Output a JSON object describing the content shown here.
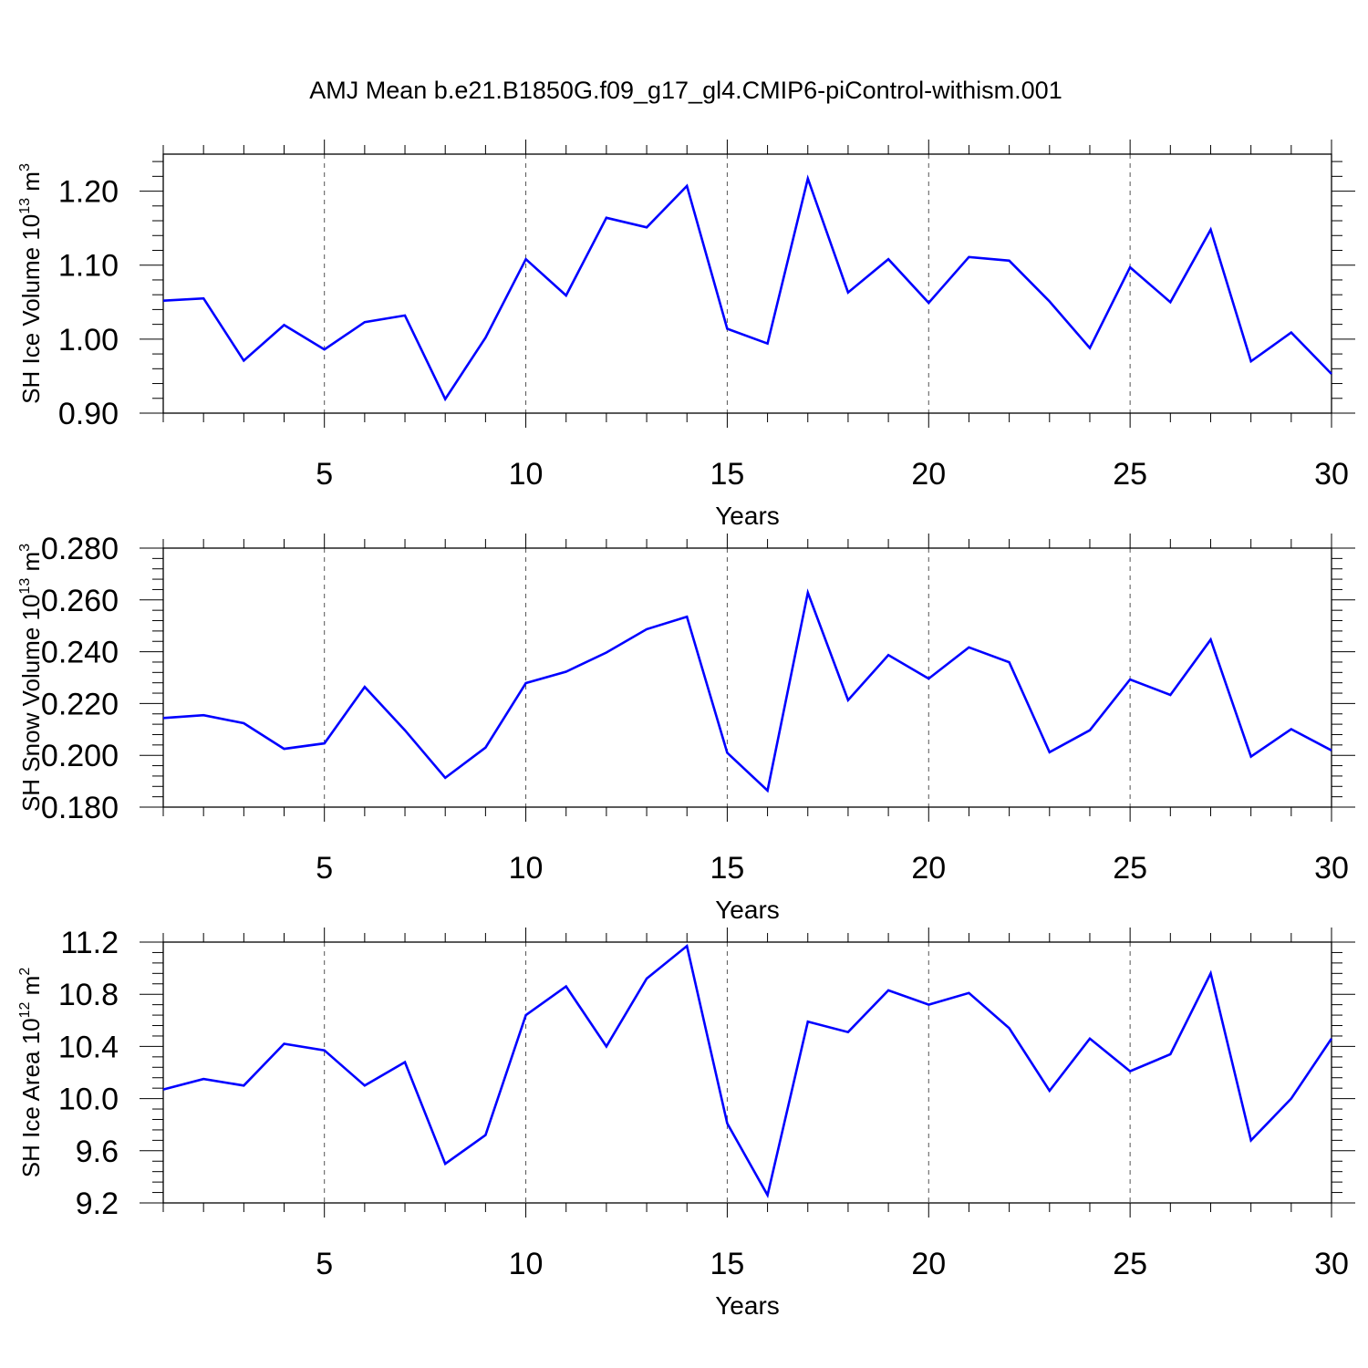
{
  "title": "AMJ Mean b.e21.B1850G.f09_g17_gl4.CMIP6-piControl-withism.001",
  "colors": {
    "line": "#0000ff",
    "axis": "#000000",
    "grid": "#555555"
  },
  "chart_data": [
    {
      "type": "line",
      "ylabel": {
        "text": "SH Ice Volume 10",
        "sup": "13",
        "unit": " m",
        "unit_sup": "3"
      },
      "xlabel": "Years",
      "xlim": [
        1,
        30
      ],
      "ylim": [
        0.9,
        1.25
      ],
      "xticks": [
        5,
        10,
        15,
        20,
        25,
        30
      ],
      "yticks": [
        "0.90",
        "1.00",
        "1.10",
        "1.20"
      ],
      "grid": "x-dashed",
      "x": [
        1,
        2,
        3,
        4,
        5,
        6,
        7,
        8,
        9,
        10,
        11,
        12,
        13,
        14,
        15,
        16,
        17,
        18,
        19,
        20,
        21,
        22,
        23,
        24,
        25,
        26,
        27,
        28,
        29,
        30
      ],
      "values": [
        1.052,
        1.055,
        0.971,
        1.019,
        0.986,
        1.023,
        1.032,
        0.919,
        1.002,
        1.108,
        1.059,
        1.164,
        1.151,
        1.207,
        1.014,
        0.994,
        1.217,
        1.063,
        1.108,
        1.049,
        1.111,
        1.106,
        1.051,
        0.988,
        1.097,
        1.05,
        1.148,
        0.97,
        1.009,
        0.953
      ]
    },
    {
      "type": "line",
      "ylabel": {
        "text": "SH Snow Volume 10",
        "sup": "13",
        "unit": " m",
        "unit_sup": "3"
      },
      "xlabel": "Years",
      "xlim": [
        1,
        30
      ],
      "ylim": [
        0.18,
        0.28
      ],
      "xticks": [
        5,
        10,
        15,
        20,
        25,
        30
      ],
      "yticks": [
        "0.180",
        "0.200",
        "0.220",
        "0.240",
        "0.260",
        "0.280"
      ],
      "grid": "x-dashed",
      "x": [
        1,
        2,
        3,
        4,
        5,
        6,
        7,
        8,
        9,
        10,
        11,
        12,
        13,
        14,
        15,
        16,
        17,
        18,
        19,
        20,
        21,
        22,
        23,
        24,
        25,
        26,
        27,
        28,
        29,
        30
      ],
      "values": [
        0.2144,
        0.2155,
        0.2124,
        0.2025,
        0.2046,
        0.2264,
        0.2097,
        0.1913,
        0.203,
        0.2279,
        0.2323,
        0.2397,
        0.2487,
        0.2535,
        0.201,
        0.1864,
        0.2628,
        0.2213,
        0.2387,
        0.2296,
        0.2417,
        0.2359,
        0.2012,
        0.2097,
        0.2293,
        0.2233,
        0.2447,
        0.1995,
        0.2101,
        0.2019
      ]
    },
    {
      "type": "line",
      "ylabel": {
        "text": "SH Ice Area 10",
        "sup": "12",
        "unit": " m",
        "unit_sup": "2"
      },
      "xlabel": "Years",
      "xlim": [
        1,
        30
      ],
      "ylim": [
        9.2,
        11.2
      ],
      "xticks": [
        5,
        10,
        15,
        20,
        25,
        30
      ],
      "yticks": [
        "9.2",
        "9.6",
        "10.0",
        "10.4",
        "10.8",
        "11.2"
      ],
      "grid": "x-dashed",
      "x": [
        1,
        2,
        3,
        4,
        5,
        6,
        7,
        8,
        9,
        10,
        11,
        12,
        13,
        14,
        15,
        16,
        17,
        18,
        19,
        20,
        21,
        22,
        23,
        24,
        25,
        26,
        27,
        28,
        29,
        30
      ],
      "values": [
        10.07,
        10.15,
        10.1,
        10.42,
        10.37,
        10.1,
        10.28,
        9.5,
        9.72,
        10.64,
        10.86,
        10.4,
        10.92,
        11.17,
        9.81,
        9.26,
        10.59,
        10.51,
        10.83,
        10.72,
        10.81,
        10.54,
        10.06,
        10.46,
        10.21,
        10.34,
        10.96,
        9.68,
        10.0,
        10.46
      ]
    }
  ]
}
